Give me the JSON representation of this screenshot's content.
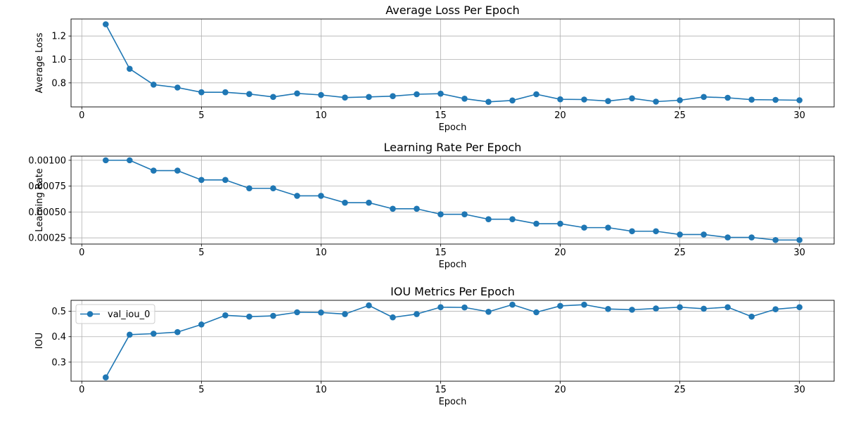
{
  "chart_data": [
    {
      "type": "line",
      "title": "Average Loss Per Epoch",
      "xlabel": "Epoch",
      "ylabel": "Average Loss",
      "grid": true,
      "color": "#1f77b4",
      "xlim": [
        -0.45,
        31.45
      ],
      "ylim": [
        0.595,
        1.345
      ],
      "xticks": [
        0,
        5,
        10,
        15,
        20,
        25,
        30
      ],
      "xtick_labels": [
        "0",
        "5",
        "10",
        "15",
        "20",
        "25",
        "30"
      ],
      "yticks": [
        0.8,
        1.0,
        1.2
      ],
      "ytick_labels": [
        "0.8",
        "1.0",
        "1.2"
      ],
      "series": [
        {
          "x": [
            1,
            2,
            3,
            4,
            5,
            6,
            7,
            8,
            9,
            10,
            11,
            12,
            13,
            14,
            15,
            16,
            17,
            18,
            19,
            20,
            21,
            22,
            23,
            24,
            25,
            26,
            27,
            28,
            29,
            30
          ],
          "values": [
            1.3,
            0.92,
            0.785,
            0.76,
            0.72,
            0.72,
            0.705,
            0.68,
            0.71,
            0.697,
            0.675,
            0.68,
            0.687,
            0.703,
            0.708,
            0.665,
            0.638,
            0.65,
            0.703,
            0.66,
            0.658,
            0.645,
            0.668,
            0.64,
            0.652,
            0.68,
            0.673,
            0.657,
            0.655,
            0.652
          ]
        }
      ]
    },
    {
      "type": "line",
      "title": "Learning Rate Per Epoch",
      "xlabel": "Epoch",
      "ylabel": "Learning Rate",
      "grid": true,
      "color": "#1f77b4",
      "xlim": [
        -0.45,
        31.45
      ],
      "ylim": [
        0.00019,
        0.00104
      ],
      "xticks": [
        0,
        5,
        10,
        15,
        20,
        25,
        30
      ],
      "xtick_labels": [
        "0",
        "5",
        "10",
        "15",
        "20",
        "25",
        "30"
      ],
      "yticks": [
        0.00025,
        0.0005,
        0.00075,
        0.001
      ],
      "ytick_labels": [
        "0.00025",
        "0.00050",
        "0.00075",
        "0.00100"
      ],
      "series": [
        {
          "x": [
            1,
            2,
            3,
            4,
            5,
            6,
            7,
            8,
            9,
            10,
            11,
            12,
            13,
            14,
            15,
            16,
            17,
            18,
            19,
            20,
            21,
            22,
            23,
            24,
            25,
            26,
            27,
            28,
            29,
            30
          ],
          "values": [
            0.001,
            0.001,
            0.0009,
            0.0009,
            0.00081,
            0.00081,
            0.000729,
            0.000729,
            0.000656,
            0.000656,
            0.00059,
            0.00059,
            0.000531,
            0.000531,
            0.000478,
            0.000478,
            0.00043,
            0.00043,
            0.000387,
            0.000387,
            0.000349,
            0.000349,
            0.000314,
            0.000314,
            0.000282,
            0.000282,
            0.000254,
            0.000254,
            0.000229,
            0.000229
          ]
        }
      ]
    },
    {
      "type": "line",
      "title": "IOU Metrics Per Epoch",
      "xlabel": "Epoch",
      "ylabel": "IOU",
      "grid": true,
      "color": "#1f77b4",
      "xlim": [
        -0.45,
        31.45
      ],
      "ylim": [
        0.225,
        0.543
      ],
      "xticks": [
        0,
        5,
        10,
        15,
        20,
        25,
        30
      ],
      "xtick_labels": [
        "0",
        "5",
        "10",
        "15",
        "20",
        "25",
        "30"
      ],
      "yticks": [
        0.3,
        0.4,
        0.5
      ],
      "ytick_labels": [
        "0.3",
        "0.4",
        "0.5"
      ],
      "legend": {
        "location": "upper-left",
        "entries": [
          "val_iou_0"
        ]
      },
      "series": [
        {
          "name": "val_iou_0",
          "x": [
            1,
            2,
            3,
            4,
            5,
            6,
            7,
            8,
            9,
            10,
            11,
            12,
            13,
            14,
            15,
            16,
            17,
            18,
            19,
            20,
            21,
            22,
            23,
            24,
            25,
            26,
            27,
            28,
            29,
            30
          ],
          "values": [
            0.24,
            0.408,
            0.412,
            0.418,
            0.448,
            0.484,
            0.479,
            0.482,
            0.496,
            0.495,
            0.489,
            0.523,
            0.476,
            0.489,
            0.516,
            0.515,
            0.498,
            0.526,
            0.496,
            0.521,
            0.526,
            0.509,
            0.506,
            0.511,
            0.516,
            0.51,
            0.516,
            0.479,
            0.508,
            0.516
          ]
        }
      ]
    }
  ]
}
